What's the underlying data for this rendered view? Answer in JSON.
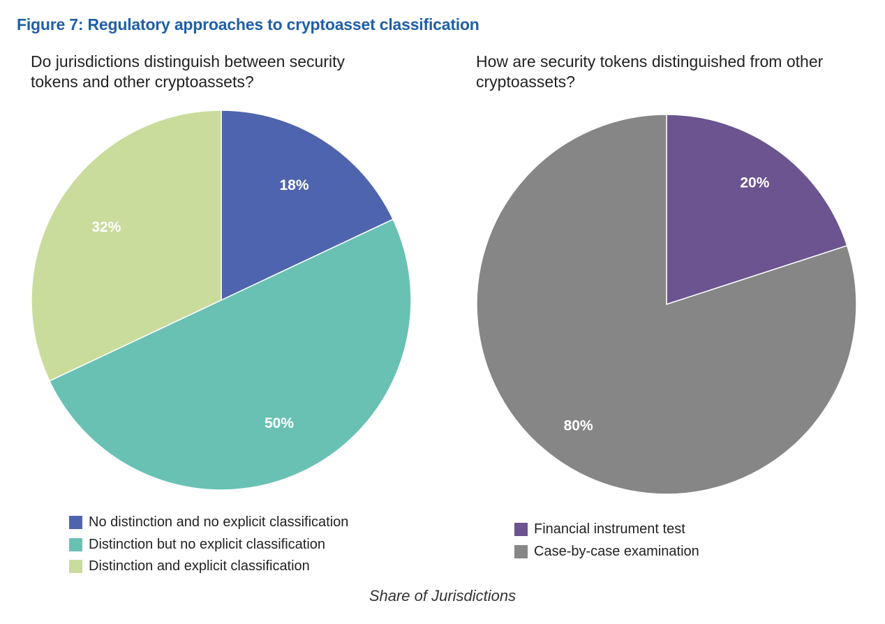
{
  "figure_title": "Figure 7: Regulatory approaches to cryptoasset classification",
  "caption": "Share of Jurisdictions",
  "chart_data": [
    {
      "type": "pie",
      "title": "Do jurisdictions distinguish between security tokens and other cryptoassets?",
      "slices": [
        {
          "label": "No distinction and no explicit classification",
          "value": 18,
          "display": "18%",
          "color": "#4f64ae"
        },
        {
          "label": "Distinction but no explicit classification",
          "value": 50,
          "display": "50%",
          "color": "#69c1b4"
        },
        {
          "label": "Distinction and explicit classification",
          "value": 32,
          "display": "32%",
          "color": "#c9dc9c"
        }
      ],
      "legend_position": "bottom"
    },
    {
      "type": "pie",
      "title": "How are security tokens distinguished from other cryptoassets?",
      "slices": [
        {
          "label": "Financial instrument test",
          "value": 20,
          "display": "20%",
          "color": "#6b548f"
        },
        {
          "label": "Case-by-case examination",
          "value": 80,
          "display": "80%",
          "color": "#858685"
        }
      ],
      "legend_position": "bottom"
    }
  ]
}
